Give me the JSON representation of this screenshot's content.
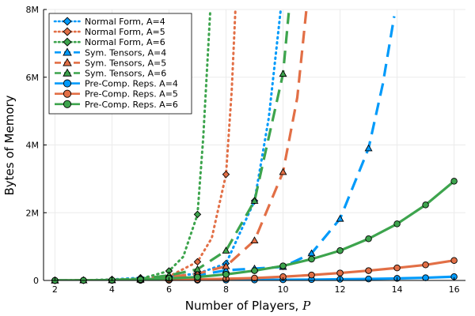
{
  "chart_data": {
    "type": "line",
    "title": "",
    "xlabel": "Number of Players,",
    "xlabel_symbol": "P",
    "ylabel": "Bytes of Memory",
    "xlim": [
      1.6,
      16.4
    ],
    "ylim": [
      0,
      8000000
    ],
    "xticks": [
      2,
      4,
      6,
      8,
      10,
      12,
      14,
      16
    ],
    "yticks": [
      0,
      2000000,
      4000000,
      6000000,
      8000000
    ],
    "ytick_labels": [
      "0",
      "2M",
      "4M",
      "6M",
      "8M"
    ],
    "grid": true,
    "legend_position": "top-left",
    "colors": {
      "A4": "#009AFA",
      "A5": "#E26F46",
      "A6": "#3DA44D",
      "grid": "#EBEBEB",
      "axis": "#000000"
    },
    "series": [
      {
        "name": "Normal Form, A=4",
        "group": "A4",
        "line": "dotted",
        "marker": "diamond",
        "x": [
          2,
          3,
          4,
          5,
          6,
          7,
          8,
          9
        ],
        "y": [
          200,
          3000,
          30000,
          80000,
          120000,
          200000,
          500000,
          2350000
        ],
        "curve_x": [
          2,
          3,
          4,
          5,
          6,
          7,
          8,
          9,
          9.5,
          9.92
        ],
        "curve_y": [
          200,
          3000,
          30000,
          80000,
          120000,
          200000,
          500000,
          2350000,
          4800000,
          8000000
        ]
      },
      {
        "name": "Normal Form, A=5",
        "group": "A5",
        "line": "dotted",
        "marker": "diamond",
        "x": [
          2,
          3,
          4,
          5,
          6,
          7,
          8
        ],
        "y": [
          300,
          5000,
          25000,
          50000,
          120000,
          550000,
          3130000
        ],
        "curve_x": [
          2,
          3,
          4,
          5,
          6,
          7,
          7.5,
          8,
          8.2,
          8.33
        ],
        "curve_y": [
          300,
          5000,
          25000,
          50000,
          120000,
          550000,
          1250000,
          3130000,
          5600000,
          8000000
        ]
      },
      {
        "name": "Normal Form, A=6",
        "group": "A6",
        "line": "dotted",
        "marker": "diamond",
        "x": [
          2,
          3,
          4,
          5,
          6,
          7
        ],
        "y": [
          500,
          10000,
          20000,
          50000,
          280000,
          1950000
        ],
        "curve_x": [
          2,
          3,
          4,
          5,
          6,
          6.5,
          7,
          7.2,
          7.45
        ],
        "curve_y": [
          500,
          10000,
          20000,
          50000,
          280000,
          700000,
          1950000,
          4200000,
          8000000
        ]
      },
      {
        "name": "Sym. Tensors, A=4",
        "group": "A4",
        "line": "dashed",
        "marker": "triangle",
        "x": [
          2,
          3,
          4,
          5,
          6,
          7,
          8,
          9,
          10,
          11,
          12,
          13
        ],
        "y": [
          100,
          1000,
          5000,
          20000,
          60000,
          150000,
          300000,
          350000,
          400000,
          800000,
          1820000,
          3900000
        ],
        "curve_x": [
          2,
          3,
          4,
          5,
          6,
          7,
          8,
          9,
          10,
          11,
          12,
          13,
          13.5,
          13.9
        ],
        "curve_y": [
          100,
          1000,
          5000,
          20000,
          60000,
          150000,
          300000,
          350000,
          400000,
          800000,
          1820000,
          3900000,
          5800000,
          7800000
        ]
      },
      {
        "name": "Sym. Tensors, A=5",
        "group": "A5",
        "line": "dashed",
        "marker": "triangle",
        "x": [
          2,
          3,
          4,
          5,
          6,
          7,
          8,
          9,
          10
        ],
        "y": [
          150,
          2000,
          10000,
          30000,
          100000,
          200000,
          420000,
          1180000,
          3200000
        ],
        "curve_x": [
          2,
          3,
          4,
          5,
          6,
          7,
          8,
          9,
          10,
          10.5,
          10.82
        ],
        "curve_y": [
          150,
          2000,
          10000,
          30000,
          100000,
          200000,
          420000,
          1180000,
          3200000,
          5400000,
          8000000
        ]
      },
      {
        "name": "Sym. Tensors, A=6",
        "group": "A6",
        "line": "dashed",
        "marker": "triangle",
        "x": [
          2,
          3,
          4,
          5,
          6,
          7,
          8,
          9,
          10
        ],
        "y": [
          200,
          3000,
          15000,
          50000,
          150000,
          330000,
          880000,
          2350000,
          6100000
        ],
        "curve_x": [
          2,
          3,
          4,
          5,
          6,
          7,
          8,
          9,
          10,
          10.2
        ],
        "curve_y": [
          200,
          3000,
          15000,
          50000,
          150000,
          330000,
          880000,
          2350000,
          6100000,
          7900000
        ]
      },
      {
        "name": "Pre-Comp. Reps. A=4",
        "group": "A4",
        "line": "solid",
        "marker": "circle",
        "x": [
          2,
          3,
          4,
          5,
          6,
          7,
          8,
          9,
          10,
          11,
          12,
          13,
          14,
          15,
          16
        ],
        "y": [
          0,
          1000,
          2000,
          4000,
          6000,
          8000,
          12000,
          15000,
          20000,
          25000,
          35000,
          45000,
          60000,
          80000,
          110000
        ]
      },
      {
        "name": "Pre-Comp. Reps. A=5",
        "group": "A5",
        "line": "solid",
        "marker": "circle",
        "x": [
          2,
          3,
          4,
          5,
          6,
          7,
          8,
          9,
          10,
          11,
          12,
          13,
          14,
          15,
          16
        ],
        "y": [
          0,
          2000,
          5000,
          12000,
          20000,
          30000,
          50000,
          70000,
          110000,
          160000,
          220000,
          290000,
          370000,
          460000,
          590000
        ]
      },
      {
        "name": "Pre-Comp. Reps. A=6",
        "group": "A6",
        "line": "solid",
        "marker": "circle",
        "x": [
          2,
          3,
          4,
          5,
          6,
          7,
          8,
          9,
          10,
          11,
          12,
          13,
          14,
          15,
          16
        ],
        "y": [
          0,
          3000,
          10000,
          30000,
          60000,
          100000,
          180000,
          290000,
          430000,
          630000,
          880000,
          1230000,
          1670000,
          2230000,
          2930000
        ]
      }
    ]
  }
}
